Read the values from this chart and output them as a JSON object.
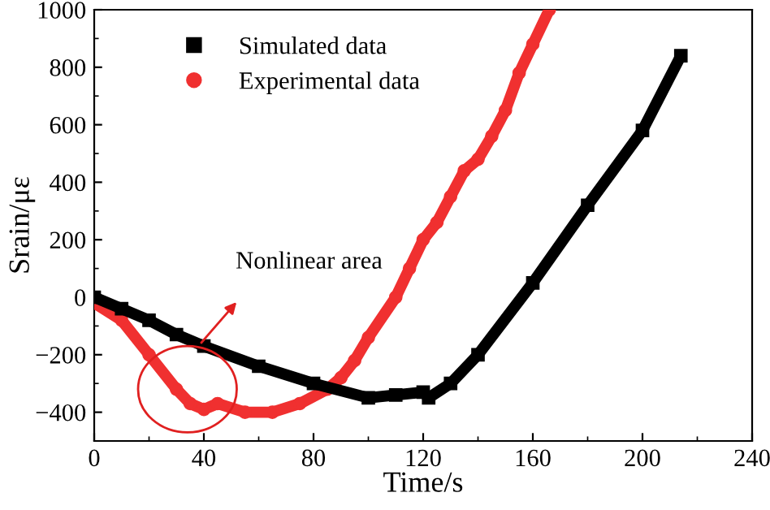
{
  "chart_data": {
    "type": "line",
    "xlabel": "Time/s",
    "ylabel": "Srain/με",
    "xlim": [
      0,
      240
    ],
    "xticks": [
      0,
      40,
      80,
      120,
      160,
      200,
      240
    ],
    "ylim": [
      -500,
      1000
    ],
    "yticks": [
      -400,
      -200,
      0,
      200,
      400,
      600,
      800,
      1000
    ],
    "grid": false,
    "legend": "top left",
    "line_style": "solid",
    "annotations": [
      "Nonlinear area"
    ],
    "series": [
      {
        "name": "Simulated data",
        "color": "#000000",
        "marker": "square",
        "x": [
          0,
          10,
          20,
          30,
          40,
          60,
          80,
          100,
          110,
          120,
          122,
          130,
          140,
          160,
          180,
          200,
          214
        ],
        "values": [
          0,
          -40,
          -80,
          -130,
          -170,
          -240,
          -300,
          -350,
          -340,
          -330,
          -350,
          -300,
          -200,
          50,
          320,
          580,
          840
        ]
      },
      {
        "name": "Experimental data",
        "color": "#f03030",
        "marker": "circle",
        "x": [
          0,
          10,
          20,
          30,
          35,
          40,
          45,
          55,
          65,
          75,
          85,
          90,
          95,
          100,
          110,
          115,
          120,
          125,
          130,
          135,
          140,
          145,
          150,
          155,
          160,
          166
        ],
        "values": [
          -20,
          -80,
          -200,
          -320,
          -370,
          -390,
          -370,
          -400,
          -400,
          -370,
          -320,
          -280,
          -220,
          -140,
          0,
          100,
          200,
          260,
          350,
          440,
          480,
          560,
          650,
          780,
          880,
          1000
        ]
      }
    ]
  }
}
